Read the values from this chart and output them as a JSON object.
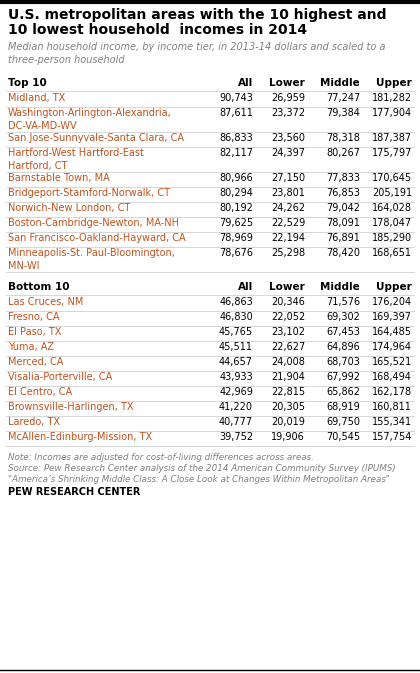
{
  "title_line1": "U.S. metropolitan areas with the 10 highest and",
  "title_line2": "10 lowest household  incomes in 2014",
  "subtitle": "Median household income, by income tier, in 2013-14 dollars and scaled to a\nthree-person household",
  "top10_header": "Top 10",
  "bottom10_header": "Bottom 10",
  "col_headers": [
    "All",
    "Lower",
    "Middle",
    "Upper"
  ],
  "top10": [
    [
      "Midland, TX",
      "90,743",
      "26,959",
      "77,247",
      "181,282"
    ],
    [
      "Washington-Arlington-Alexandria,\nDC-VA-MD-WV",
      "87,611",
      "23,372",
      "79,384",
      "177,904"
    ],
    [
      "San Jose-Sunnyvale-Santa Clara, CA",
      "86,833",
      "23,560",
      "78,318",
      "187,387"
    ],
    [
      "Hartford-West Hartford-East\nHartford, CT",
      "82,117",
      "24,397",
      "80,267",
      "175,797"
    ],
    [
      "Barnstable Town, MA",
      "80,966",
      "27,150",
      "77,833",
      "170,645"
    ],
    [
      "Bridgeport-Stamford-Norwalk, CT",
      "80,294",
      "23,801",
      "76,853",
      "205,191"
    ],
    [
      "Norwich-New London, CT",
      "80,192",
      "24,262",
      "79,042",
      "164,028"
    ],
    [
      "Boston-Cambridge-Newton, MA-NH",
      "79,625",
      "22,529",
      "78,091",
      "178,047"
    ],
    [
      "San Francisco-Oakland-Hayward, CA",
      "78,969",
      "22,194",
      "76,891",
      "185,290"
    ],
    [
      "Minneapolis-St. Paul-Bloomington,\nMN-WI",
      "78,676",
      "25,298",
      "78,420",
      "168,651"
    ]
  ],
  "top10_two_line": [
    false,
    true,
    false,
    true,
    false,
    false,
    false,
    false,
    false,
    true
  ],
  "bottom10": [
    [
      "Las Cruces, NM",
      "46,863",
      "20,346",
      "71,576",
      "176,204"
    ],
    [
      "Fresno, CA",
      "46,830",
      "22,052",
      "69,302",
      "169,397"
    ],
    [
      "El Paso, TX",
      "45,765",
      "23,102",
      "67,453",
      "164,485"
    ],
    [
      "Yuma, AZ",
      "45,511",
      "22,627",
      "64,896",
      "174,964"
    ],
    [
      "Merced, CA",
      "44,657",
      "24,008",
      "68,703",
      "165,521"
    ],
    [
      "Visalia-Porterville, CA",
      "43,933",
      "21,904",
      "67,992",
      "168,494"
    ],
    [
      "El Centro, CA",
      "42,969",
      "22,815",
      "65,862",
      "162,178"
    ],
    [
      "Brownsville-Harlingen, TX",
      "41,220",
      "20,305",
      "68,919",
      "160,811"
    ],
    [
      "Laredo, TX",
      "40,777",
      "20,019",
      "69,750",
      "155,341"
    ],
    [
      "McAllen-Edinburg-Mission, TX",
      "39,752",
      "19,906",
      "70,545",
      "157,754"
    ]
  ],
  "note": "Note: Incomes are adjusted for cost-of-living differences across areas.",
  "source1": "Source: Pew Research Center analysis of the 2014 American Community Survey (IPUMS)",
  "source2": "\"America’s Shrinking Middle Class: A Close Look at Changes Within Metropolitan Areas\"",
  "footer": "PEW RESEARCH CENTER",
  "title_color": "#000000",
  "subtitle_color": "#808080",
  "header_color": "#000000",
  "city_color": "#c0521e",
  "value_color": "#000000",
  "note_color": "#808080",
  "bg_color": "#ffffff",
  "border_color": "#000000",
  "sep_color": "#d0d0d0"
}
